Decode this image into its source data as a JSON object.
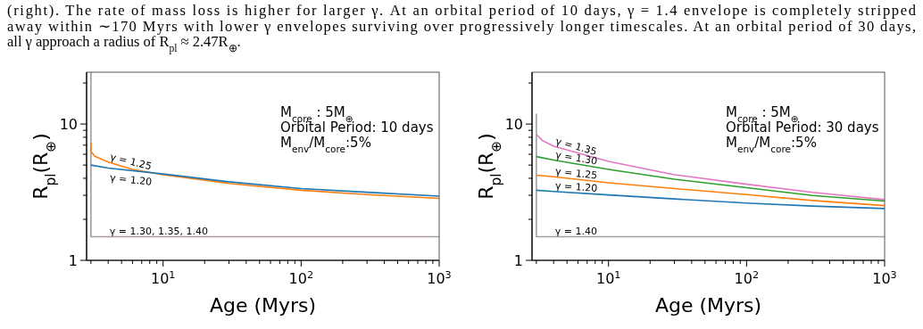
{
  "chart_data": [
    {
      "type": "line",
      "xlabel": "Age (Myrs)",
      "ylabel": "R$_{pl}$(R$_{⊕}$)",
      "log": "xy",
      "xlim": [
        2.79,
        1000
      ],
      "ylim": [
        1,
        24
      ],
      "xticks": [
        {
          "value": 3,
          "label": null
        },
        {
          "value": 4,
          "label": null
        },
        {
          "value": 5,
          "label": null
        },
        {
          "value": 6,
          "label": null
        },
        {
          "value": 7,
          "label": null
        },
        {
          "value": 8,
          "label": null
        },
        {
          "value": 9,
          "label": null
        },
        {
          "value": 10,
          "label": "10$^{1}$"
        },
        {
          "value": 20,
          "label": null
        },
        {
          "value": 30,
          "label": null
        },
        {
          "value": 40,
          "label": null
        },
        {
          "value": 50,
          "label": null
        },
        {
          "value": 60,
          "label": null
        },
        {
          "value": 70,
          "label": null
        },
        {
          "value": 80,
          "label": null
        },
        {
          "value": 90,
          "label": null
        },
        {
          "value": 100,
          "label": "10$^{2}$"
        },
        {
          "value": 200,
          "label": null
        },
        {
          "value": 300,
          "label": null
        },
        {
          "value": 400,
          "label": null
        },
        {
          "value": 500,
          "label": null
        },
        {
          "value": 600,
          "label": null
        },
        {
          "value": 700,
          "label": null
        },
        {
          "value": 800,
          "label": null
        },
        {
          "value": 900,
          "label": null
        },
        {
          "value": 1000,
          "label": "10$^{3}$"
        }
      ],
      "yticks": [
        {
          "value": 1,
          "label": "1"
        },
        {
          "value": 2,
          "label": null
        },
        {
          "value": 3,
          "label": null
        },
        {
          "value": 4,
          "label": null
        },
        {
          "value": 5,
          "label": null
        },
        {
          "value": 6,
          "label": null
        },
        {
          "value": 7,
          "label": null
        },
        {
          "value": 8,
          "label": null
        },
        {
          "value": 9,
          "label": null
        },
        {
          "value": 10,
          "label": "10"
        },
        {
          "value": 20,
          "label": null
        }
      ],
      "series": [
        {
          "name": "γ = 1.30, 1.35, 1.40",
          "color": "#a99a9c",
          "x": [
            3,
            3,
            1000
          ],
          "values": [
            24,
            1.49,
            1.49
          ]
        },
        {
          "name": "γ = 1.25",
          "color": "#ff7f0e",
          "x": [
            3,
            3,
            3.2,
            4,
            6,
            10,
            30,
            100,
            300,
            1000
          ],
          "values": [
            7.3,
            6.3,
            5.8,
            5.27,
            4.65,
            4.25,
            3.67,
            3.27,
            3.04,
            2.85
          ]
        },
        {
          "name": "γ = 1.20",
          "color": "#1f77b4",
          "x": [
            3,
            4,
            10,
            30,
            100,
            300,
            1000
          ],
          "values": [
            5.0,
            4.75,
            4.3,
            3.77,
            3.36,
            3.16,
            2.96
          ]
        }
      ],
      "annotations": [
        "(right). The rate of mass loss is higher for larger γ. At an orbital period of 10 days, γ = 1.4 envelope is completely stripped\naway within ∼170 Myrs with lower γ envelopes surviving over progressively longer timescales. At an orbital period of 30 days,\nall γ approach a radius of R$_{pl}$ ≈ 2.47R$_{⊕}$.",
        "M$_{core}$ : 5M$_{⊕}$\nOrbital Period: 10 days\nM$_{env}$/M$_{core}$:5%"
      ]
    },
    {
      "type": "line",
      "xlabel": "Age (Myrs)",
      "ylabel": "R$_{pl}$(R$_{⊕}$)",
      "log": "xy",
      "xlim": [
        2.79,
        1000
      ],
      "ylim": [
        1,
        24
      ],
      "xticks": [
        {
          "value": 3,
          "label": null
        },
        {
          "value": 4,
          "label": null
        },
        {
          "value": 5,
          "label": null
        },
        {
          "value": 6,
          "label": null
        },
        {
          "value": 7,
          "label": null
        },
        {
          "value": 8,
          "label": null
        },
        {
          "value": 9,
          "label": null
        },
        {
          "value": 10,
          "label": "10$^{1}$"
        },
        {
          "value": 20,
          "label": null
        },
        {
          "value": 30,
          "label": null
        },
        {
          "value": 40,
          "label": null
        },
        {
          "value": 50,
          "label": null
        },
        {
          "value": 60,
          "label": null
        },
        {
          "value": 70,
          "label": null
        },
        {
          "value": 80,
          "label": null
        },
        {
          "value": 90,
          "label": null
        },
        {
          "value": 100,
          "label": "10$^{2}$"
        },
        {
          "value": 200,
          "label": null
        },
        {
          "value": 300,
          "label": null
        },
        {
          "value": 400,
          "label": null
        },
        {
          "value": 500,
          "label": null
        },
        {
          "value": 600,
          "label": null
        },
        {
          "value": 700,
          "label": null
        },
        {
          "value": 800,
          "label": null
        },
        {
          "value": 900,
          "label": null
        },
        {
          "value": 1000,
          "label": "10$^{3}$"
        }
      ],
      "yticks": [
        {
          "value": 1,
          "label": "1"
        },
        {
          "value": 2,
          "label": null
        },
        {
          "value": 3,
          "label": null
        },
        {
          "value": 4,
          "label": null
        },
        {
          "value": 5,
          "label": null
        },
        {
          "value": 6,
          "label": null
        },
        {
          "value": 7,
          "label": null
        },
        {
          "value": 8,
          "label": null
        },
        {
          "value": 9,
          "label": null
        },
        {
          "value": 10,
          "label": "10"
        },
        {
          "value": 20,
          "label": null
        }
      ],
      "series": [
        {
          "name": "γ = 1.40",
          "color": "#a0a0a0",
          "x": [
            3,
            3,
            1000
          ],
          "values": [
            11.9,
            1.49,
            1.49
          ]
        },
        {
          "name": "γ = 1.35",
          "color": "#e377c2",
          "x": [
            3,
            3.3,
            4,
            10,
            30,
            100,
            300,
            1000
          ],
          "values": [
            8.4,
            7.6,
            6.87,
            5.32,
            4.25,
            3.62,
            3.15,
            2.79
          ]
        },
        {
          "name": "γ = 1.30",
          "color": "#2ca02c",
          "x": [
            3,
            4,
            10,
            30,
            100,
            300,
            1000
          ],
          "values": [
            5.77,
            5.45,
            4.65,
            3.94,
            3.41,
            2.99,
            2.72
          ]
        },
        {
          "name": "γ = 1.25",
          "color": "#ff7f0e",
          "x": [
            3,
            4,
            10,
            30,
            100,
            300,
            1000
          ],
          "values": [
            4.21,
            4.1,
            3.71,
            3.36,
            3.04,
            2.75,
            2.52
          ]
        },
        {
          "name": "γ = 1.20",
          "color": "#1f77b4",
          "x": [
            3,
            4,
            10,
            30,
            100,
            300,
            1000
          ],
          "values": [
            3.27,
            3.2,
            3.02,
            2.82,
            2.63,
            2.5,
            2.4
          ]
        }
      ],
      "annotations": [
        "M$_{core}$ : 5M$_{⊕}$\nOrbital Period: 30 days\nM$_{env}$/M$_{core}$:5%"
      ]
    }
  ]
}
